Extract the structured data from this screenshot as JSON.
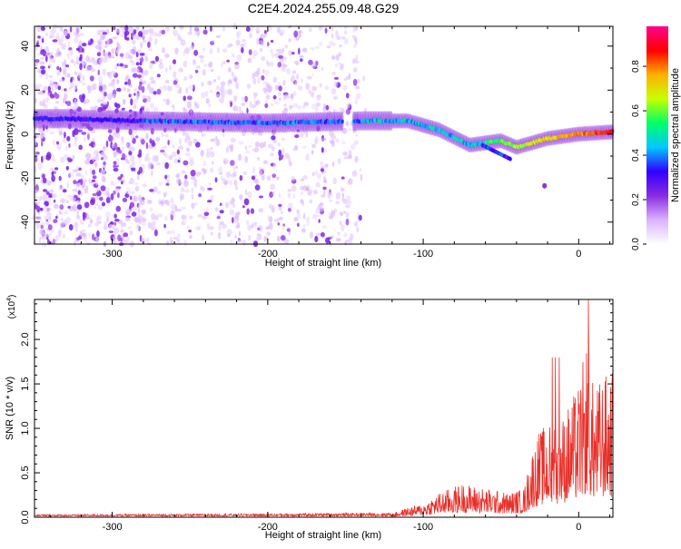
{
  "page_title": "C2E4.2024.255.09.48.G29",
  "chart_data": [
    {
      "type": "heatmap",
      "xlabel": "Height of straight line (km)",
      "ylabel": "Frequency (Hz)",
      "xlim": [
        -350,
        22
      ],
      "ylim": [
        -50,
        49
      ],
      "xticks": [
        -300,
        -200,
        -100,
        0
      ],
      "yticks": [
        -40,
        -20,
        0,
        20,
        40
      ],
      "colorbar": {
        "label": "Normalized spectral amplitude",
        "range": [
          0,
          0.98
        ],
        "ticks": [
          "0.0",
          "0.2",
          "0.4",
          "0.6",
          "0.8"
        ],
        "colormap": [
          "#ffffff",
          "#d9b3ff",
          "#8a2be2",
          "#3000ff",
          "#00c8ff",
          "#00ff66",
          "#c8ff00",
          "#ffb000",
          "#ff0000",
          "#ff0090"
        ]
      },
      "ridge": {
        "description_points": [
          {
            "x": -330,
            "y": 7
          },
          {
            "x": -280,
            "y": 6
          },
          {
            "x": -200,
            "y": 5
          },
          {
            "x": -140,
            "y": 6
          },
          {
            "x": -110,
            "y": 6
          },
          {
            "x": -90,
            "y": 2
          },
          {
            "x": -70,
            "y": -5
          },
          {
            "x": -50,
            "y": -3
          },
          {
            "x": -40,
            "y": -6
          },
          {
            "x": -20,
            "y": -2
          },
          {
            "x": 0,
            "y": 0
          },
          {
            "x": 22,
            "y": 1
          }
        ]
      },
      "grid": false
    },
    {
      "type": "line",
      "xlabel": "Height of straight line (km)",
      "ylabel": "SNR (10 * v/v)",
      "yscale_label": "(x10",
      "yscale_exp": "4",
      "yscale_close": ")",
      "xlim": [
        -350,
        22
      ],
      "ylim": [
        0,
        2.45
      ],
      "xticks": [
        -300,
        -200,
        -100,
        0
      ],
      "yticks": [
        "0.0",
        "0.5",
        "1.0",
        "1.5",
        "2.0"
      ],
      "color": "#e8302a",
      "envelope": [
        {
          "x": -350,
          "y": 0.02
        },
        {
          "x": -200,
          "y": 0.03
        },
        {
          "x": -120,
          "y": 0.04
        },
        {
          "x": -110,
          "y": 0.1
        },
        {
          "x": -100,
          "y": 0.14
        },
        {
          "x": -90,
          "y": 0.25
        },
        {
          "x": -75,
          "y": 0.35
        },
        {
          "x": -60,
          "y": 0.3
        },
        {
          "x": -45,
          "y": 0.25
        },
        {
          "x": -35,
          "y": 0.3
        },
        {
          "x": -30,
          "y": 0.7
        },
        {
          "x": -25,
          "y": 0.9
        },
        {
          "x": -20,
          "y": 0.95
        },
        {
          "x": -10,
          "y": 1.05
        },
        {
          "x": -5,
          "y": 1.2
        },
        {
          "x": 0,
          "y": 1.35
        },
        {
          "x": 5,
          "y": 1.8
        },
        {
          "x": 10,
          "y": 1.3
        },
        {
          "x": 15,
          "y": 1.45
        },
        {
          "x": 22,
          "y": 1.5
        }
      ],
      "grid": false
    }
  ]
}
